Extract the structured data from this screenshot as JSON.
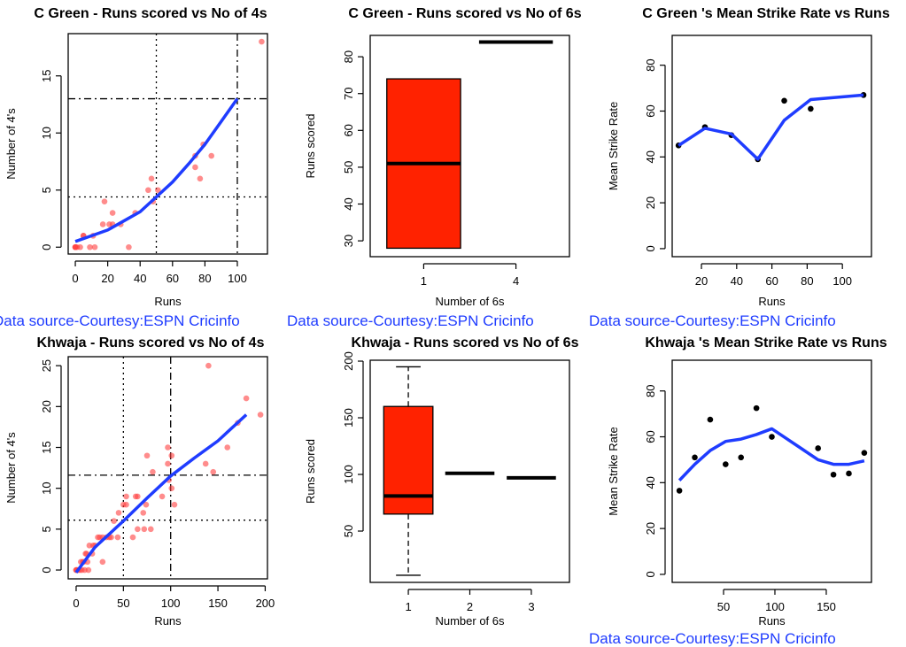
{
  "source_note": "Data source-Courtesy:ESPN Cricinfo",
  "colors": {
    "points_scatter": "#ff4040",
    "loess_line": "#1f3cff",
    "box_fill": "#ff2200",
    "source_text": "#1f3cff",
    "sr_points": "#000000"
  },
  "chart_data": [
    {
      "id": "green-4s",
      "type": "scatter",
      "title": "C Green - Runs scored vs No of 4s",
      "xlabel": "Runs",
      "ylabel": "Number of 4's",
      "xlim": [
        -4.4,
        118.6
      ],
      "ylim": [
        -0.6,
        18.7
      ],
      "xticks": [
        0,
        20,
        40,
        60,
        80,
        100
      ],
      "yticks": [
        0,
        5,
        10,
        15
      ],
      "points": [
        [
          0,
          0
        ],
        [
          0,
          0
        ],
        [
          0,
          0
        ],
        [
          1,
          0
        ],
        [
          3,
          0
        ],
        [
          5,
          1
        ],
        [
          5,
          1
        ],
        [
          9,
          0
        ],
        [
          11,
          1
        ],
        [
          12,
          0
        ],
        [
          17,
          2
        ],
        [
          18,
          4
        ],
        [
          21,
          2
        ],
        [
          23,
          3
        ],
        [
          23,
          2
        ],
        [
          28,
          2
        ],
        [
          33,
          0
        ],
        [
          37,
          3
        ],
        [
          45,
          5
        ],
        [
          47,
          6
        ],
        [
          48,
          4
        ],
        [
          51,
          5
        ],
        [
          74,
          8
        ],
        [
          74,
          7
        ],
        [
          77,
          6
        ],
        [
          79,
          9
        ],
        [
          84,
          8
        ],
        [
          115,
          18
        ]
      ],
      "fit_line": [
        [
          0,
          0.5
        ],
        [
          10,
          1
        ],
        [
          20,
          1.5
        ],
        [
          30,
          2.3
        ],
        [
          40,
          3.1
        ],
        [
          50,
          4.4
        ],
        [
          60,
          5.7
        ],
        [
          70,
          7.3
        ],
        [
          80,
          9
        ],
        [
          90,
          11
        ],
        [
          100,
          13
        ]
      ],
      "vlines": [
        {
          "x": 50,
          "style": "dotted"
        },
        {
          "x": 100,
          "style": "dotdash"
        }
      ],
      "hlines": [
        {
          "y": 4.4,
          "style": "dotted"
        },
        {
          "y": 13,
          "style": "dotdash"
        }
      ],
      "source_shown": true
    },
    {
      "id": "green-6s",
      "type": "box",
      "title": "C Green - Runs scored vs No of 6s",
      "xlabel": "Number of 6s",
      "ylabel": "Runs scored",
      "xlim": [
        0.42,
        2.58
      ],
      "ylim": [
        25.7,
        85.8
      ],
      "categories": [
        "1",
        "4"
      ],
      "yticks": [
        30,
        40,
        50,
        60,
        70,
        80
      ],
      "boxes": [
        {
          "category": "1",
          "min": 28,
          "q1": 28,
          "median": 51,
          "q3": 74,
          "max": 74
        },
        {
          "category": "4",
          "min": 84,
          "q1": 84,
          "median": 84,
          "q3": 84,
          "max": 84
        }
      ],
      "source_shown": true
    },
    {
      "id": "green-sr",
      "type": "line",
      "title": "C Green 's Mean Strike Rate vs Runs",
      "xlabel": "Runs",
      "ylabel": "Mean Strike Rate",
      "xlim": [
        3.4,
        116.5
      ],
      "ylim": [
        -3.5,
        93
      ],
      "xticks": [
        20,
        40,
        60,
        80,
        100
      ],
      "yticks": [
        0,
        20,
        40,
        60,
        80
      ],
      "points": [
        [
          7,
          45
        ],
        [
          22,
          53
        ],
        [
          37,
          49.5
        ],
        [
          52,
          39
        ],
        [
          67,
          64.5
        ],
        [
          82,
          61
        ],
        [
          112,
          67
        ]
      ],
      "fit_line": [
        [
          7,
          45
        ],
        [
          22,
          52.5
        ],
        [
          37,
          50
        ],
        [
          52,
          39
        ],
        [
          67,
          56
        ],
        [
          82,
          65
        ],
        [
          112,
          67
        ]
      ],
      "source_shown": true
    },
    {
      "id": "khwaja-4s",
      "type": "scatter",
      "title": "Khwaja - Runs scored vs No of 4s",
      "xlabel": "Runs",
      "ylabel": "Number of 4's",
      "xlim": [
        -8.4,
        202.4
      ],
      "ylim": [
        -1.08,
        26.1
      ],
      "xticks": [
        0,
        50,
        100,
        150,
        200
      ],
      "yticks": [
        0,
        5,
        10,
        15,
        20,
        25
      ],
      "points": [
        [
          0,
          0
        ],
        [
          0,
          0
        ],
        [
          1,
          0
        ],
        [
          2,
          0
        ],
        [
          4,
          0
        ],
        [
          5,
          1
        ],
        [
          6,
          0
        ],
        [
          7,
          1
        ],
        [
          8,
          1
        ],
        [
          9,
          0
        ],
        [
          10,
          2
        ],
        [
          11,
          2
        ],
        [
          12,
          1
        ],
        [
          13,
          0
        ],
        [
          14,
          3
        ],
        [
          17,
          2
        ],
        [
          18,
          3
        ],
        [
          20,
          3
        ],
        [
          23,
          4
        ],
        [
          25,
          4
        ],
        [
          28,
          1
        ],
        [
          28,
          4
        ],
        [
          32,
          4
        ],
        [
          35,
          4
        ],
        [
          37,
          4
        ],
        [
          40,
          6
        ],
        [
          44,
          4
        ],
        [
          45,
          7
        ],
        [
          50,
          8
        ],
        [
          53,
          8
        ],
        [
          53,
          9
        ],
        [
          60,
          4
        ],
        [
          63,
          9
        ],
        [
          65,
          5
        ],
        [
          65,
          9
        ],
        [
          71,
          7
        ],
        [
          72,
          5
        ],
        [
          74,
          8
        ],
        [
          75,
          14
        ],
        [
          79,
          5
        ],
        [
          81,
          12
        ],
        [
          91,
          9
        ],
        [
          97,
          13
        ],
        [
          97,
          15
        ],
        [
          98,
          11
        ],
        [
          101,
          10
        ],
        [
          101,
          14
        ],
        [
          104,
          8
        ],
        [
          137,
          13
        ],
        [
          140,
          25
        ],
        [
          145,
          12
        ],
        [
          160,
          15
        ],
        [
          171,
          18
        ],
        [
          180,
          21
        ],
        [
          195,
          19
        ]
      ],
      "fit_line": [
        [
          0,
          -0.3
        ],
        [
          20,
          2.8
        ],
        [
          50,
          6
        ],
        [
          75,
          8.8
        ],
        [
          100,
          11.5
        ],
        [
          125,
          13.7
        ],
        [
          150,
          15.8
        ],
        [
          180,
          19
        ]
      ],
      "vlines": [
        {
          "x": 50,
          "style": "dotted"
        },
        {
          "x": 100,
          "style": "dotdash"
        }
      ],
      "hlines": [
        {
          "y": 6.1,
          "style": "dotted"
        },
        {
          "y": 11.6,
          "style": "dotdash"
        }
      ],
      "source_shown": false
    },
    {
      "id": "khwaja-6s",
      "type": "box",
      "title": "Khwaja - Runs scored vs No of 6s",
      "xlabel": "Number of 6s",
      "ylabel": "Runs scored",
      "xlim": [
        0.38,
        3.62
      ],
      "ylim": [
        4.7,
        200.8
      ],
      "categories": [
        "1",
        "2",
        "3"
      ],
      "yticks": [
        50,
        100,
        150,
        200
      ],
      "boxes": [
        {
          "category": "1",
          "min": 11,
          "q1": 65,
          "median": 81,
          "q3": 160,
          "max": 195
        },
        {
          "category": "2",
          "min": 101,
          "q1": 101,
          "median": 101,
          "q3": 101,
          "max": 101
        },
        {
          "category": "3",
          "min": 97,
          "q1": 97,
          "median": 97,
          "q3": 97,
          "max": 97
        }
      ],
      "source_shown": false
    },
    {
      "id": "khwaja-sr",
      "type": "line",
      "title": "Khwaja 's Mean Strike Rate vs Runs",
      "xlabel": "Runs",
      "ylabel": "Mean Strike Rate",
      "xlim": [
        0,
        194
      ],
      "ylim": [
        -3.5,
        93.4
      ],
      "xticks": [
        50,
        100,
        150
      ],
      "yticks": [
        0,
        20,
        40,
        60,
        80
      ],
      "points": [
        [
          7,
          36.5
        ],
        [
          22,
          51
        ],
        [
          37,
          67.5
        ],
        [
          52,
          48
        ],
        [
          67,
          51
        ],
        [
          82,
          72.5
        ],
        [
          97,
          60
        ],
        [
          142,
          55
        ],
        [
          157,
          43.5
        ],
        [
          172,
          44
        ],
        [
          187,
          53
        ]
      ],
      "fit_line": [
        [
          7,
          41
        ],
        [
          22,
          48
        ],
        [
          37,
          54
        ],
        [
          52,
          58
        ],
        [
          67,
          59
        ],
        [
          82,
          61
        ],
        [
          97,
          63.5
        ],
        [
          112,
          59
        ],
        [
          127,
          54.5
        ],
        [
          142,
          50
        ],
        [
          157,
          48
        ],
        [
          172,
          48
        ],
        [
          187,
          49.5
        ]
      ],
      "source_shown": true
    }
  ]
}
